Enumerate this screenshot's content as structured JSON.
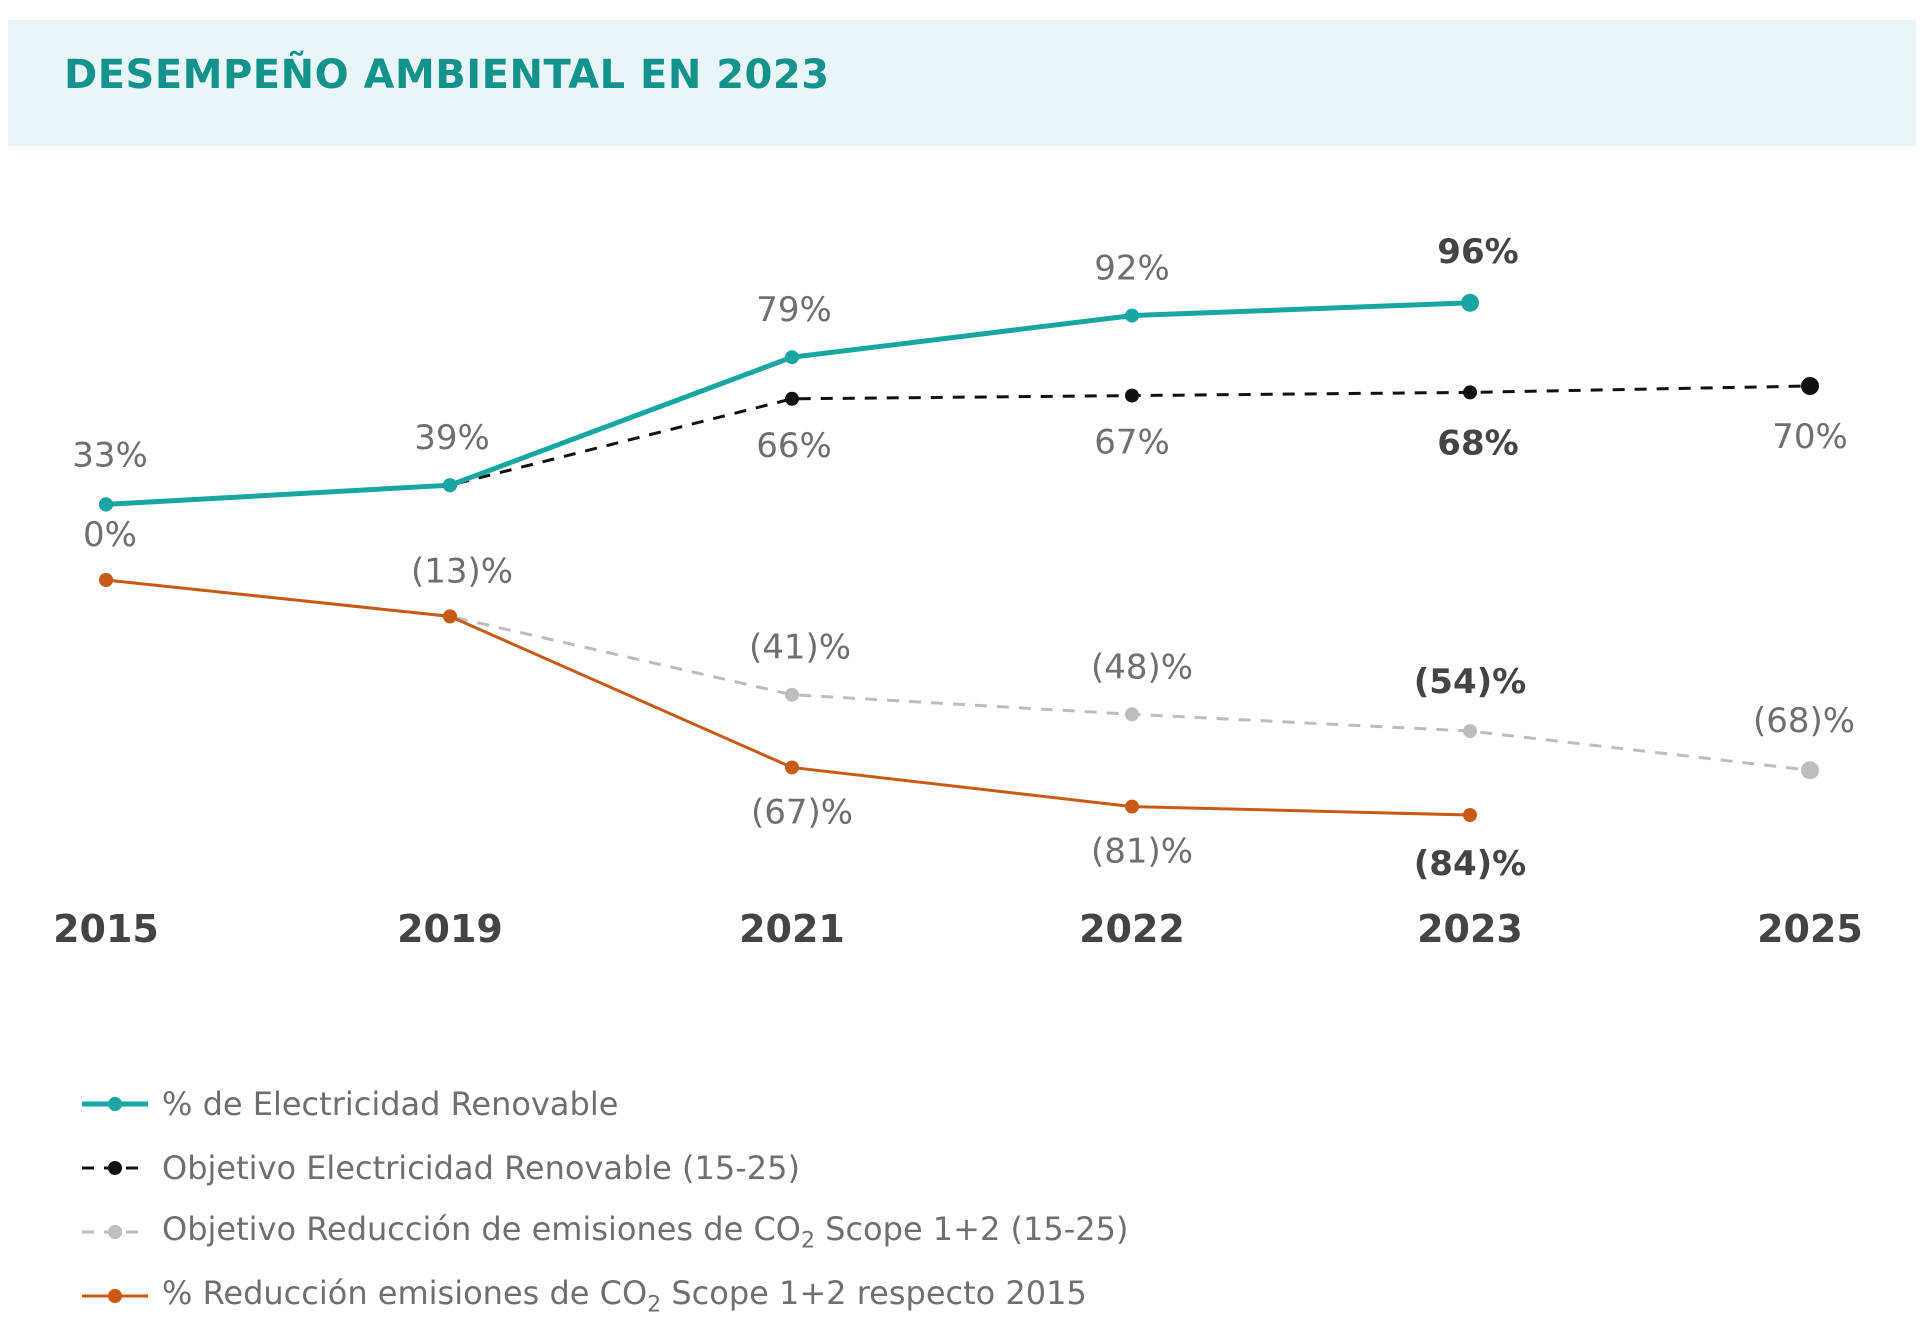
{
  "header": {
    "title": "DESEMPEÑO AMBIENTAL EN 2023"
  },
  "colors": {
    "teal": "#17a6a3",
    "black": "#111111",
    "gray": "#bdbdbd",
    "orange": "#c95a16",
    "header_bg": "#e9f6f9",
    "title": "#13938c"
  },
  "chart_data": {
    "type": "line",
    "title": "DESEMPEÑO AMBIENTAL EN 2023",
    "categories": [
      "2015",
      "2019",
      "2021",
      "2022",
      "2023",
      "2025"
    ],
    "series": [
      {
        "id": "renovable",
        "name": "% de Electricidad Renovable",
        "color": "#17a6a3",
        "dash": "solid",
        "values": [
          33,
          39,
          79,
          92,
          96,
          null
        ],
        "labels": [
          "",
          "",
          "79%",
          "92%",
          "96%",
          ""
        ],
        "bold": [
          false,
          false,
          false,
          false,
          true,
          false
        ],
        "label_pos": "above",
        "panel": "top"
      },
      {
        "id": "objetivo_renovable",
        "name": "Objetivo Electricidad Renovable (15-25)",
        "color": "#111111",
        "dash": "dashed",
        "values": [
          33,
          39,
          66,
          67,
          68,
          70
        ],
        "labels": [
          "33%",
          "39%",
          "66%",
          "67%",
          "68%",
          "70%"
        ],
        "bold": [
          false,
          false,
          false,
          false,
          true,
          false
        ],
        "label_pos": "mixed",
        "panel": "top"
      },
      {
        "id": "objetivo_co2",
        "name_parts": [
          "Objetivo Reducción de emisiones de CO",
          "2",
          " Scope 1+2 (15-25)"
        ],
        "color": "#bdbdbd",
        "dash": "dashed",
        "values": [
          0,
          -13,
          -41,
          -48,
          -54,
          -68
        ],
        "labels": [
          "",
          "",
          "(41)%",
          "(48)%",
          "(54)%",
          "(68)%"
        ],
        "bold": [
          false,
          false,
          false,
          false,
          true,
          false
        ],
        "label_pos": "above",
        "panel": "bottom"
      },
      {
        "id": "reduccion_co2",
        "name_parts": [
          "% Reducción emisiones de CO",
          "2",
          " Scope 1+2 respecto 2015"
        ],
        "color": "#c95a16",
        "dash": "solid",
        "values": [
          0,
          -13,
          -67,
          -81,
          -84,
          null
        ],
        "labels": [
          "0%",
          "(13)%",
          "(67)%",
          "(81)%",
          "(84)%",
          ""
        ],
        "bold": [
          false,
          false,
          false,
          false,
          true,
          false
        ],
        "label_pos": "mixed",
        "panel": "bottom"
      }
    ]
  },
  "legend": [
    {
      "id": "renovable",
      "text": "% de Electricidad Renovable"
    },
    {
      "id": "objetivo_renovable",
      "text": "Objetivo Electricidad Renovable (15-25)"
    },
    {
      "id": "objetivo_co2",
      "text_parts": [
        "Objetivo Reducción de emisiones de CO",
        "2",
        " Scope 1+2 (15-25)"
      ]
    },
    {
      "id": "reduccion_co2",
      "text_parts": [
        "% Reducción emisiones de CO",
        "2",
        " Scope 1+2 respecto 2015"
      ]
    }
  ]
}
